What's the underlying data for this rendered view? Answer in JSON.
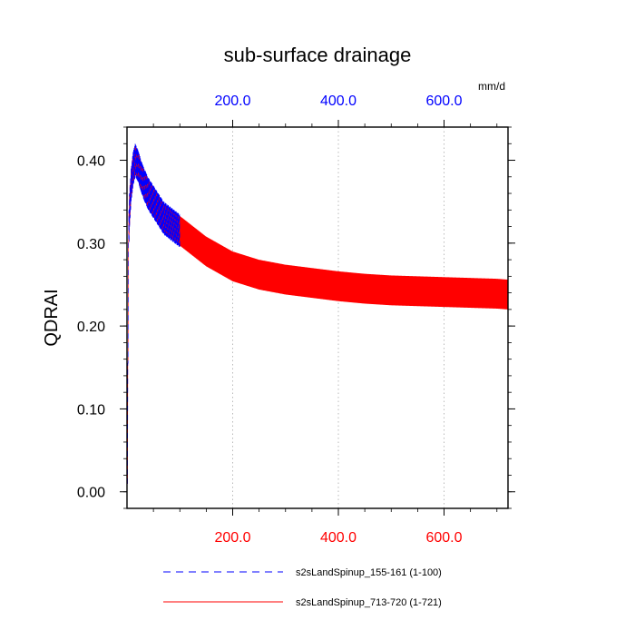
{
  "chart_data": {
    "type": "line",
    "title": "sub-surface drainage",
    "units": "mm/d",
    "ylabel": "QDRAI",
    "xlabel": "",
    "xlim": [
      0,
      721
    ],
    "ylim": [
      -0.02,
      0.44
    ],
    "grid": "vertical dotted at 200, 400, 600",
    "y_ticks": [
      {
        "value": 0.0,
        "label": "0.00"
      },
      {
        "value": 0.1,
        "label": "0.10"
      },
      {
        "value": 0.2,
        "label": "0.20"
      },
      {
        "value": 0.3,
        "label": "0.30"
      },
      {
        "value": 0.4,
        "label": "0.40"
      }
    ],
    "x_ticks_bottom": [
      {
        "value": 200,
        "label": "200.0"
      },
      {
        "value": 400,
        "label": "400.0"
      },
      {
        "value": 600,
        "label": "600.0"
      }
    ],
    "x_ticks_top": [
      {
        "value": 200,
        "label": "200.0"
      },
      {
        "value": 400,
        "label": "400.0"
      },
      {
        "value": 600,
        "label": "600.0"
      }
    ],
    "series": [
      {
        "name": "s2sLandSpinup_155-161 (1-100)",
        "color": "#0000ff",
        "dash": "dashed",
        "x": [
          1,
          3,
          5,
          8,
          12,
          16,
          20,
          25,
          30,
          40,
          50,
          60,
          70,
          80,
          90,
          100
        ],
        "y": [
          0.01,
          0.3,
          0.34,
          0.37,
          0.39,
          0.4,
          0.395,
          0.385,
          0.375,
          0.36,
          0.35,
          0.34,
          0.33,
          0.325,
          0.32,
          0.315
        ],
        "oscillation_amplitude": 0.02
      },
      {
        "name": "s2sLandSpinup_713-720 (1-721)",
        "color": "#ff0000",
        "dash": "solid",
        "x": [
          1,
          3,
          5,
          8,
          12,
          16,
          20,
          25,
          30,
          40,
          50,
          60,
          70,
          80,
          90,
          100,
          150,
          200,
          250,
          300,
          350,
          400,
          450,
          500,
          550,
          600,
          650,
          700,
          721
        ],
        "y": [
          0.01,
          0.3,
          0.34,
          0.37,
          0.39,
          0.4,
          0.395,
          0.385,
          0.375,
          0.36,
          0.35,
          0.34,
          0.33,
          0.325,
          0.32,
          0.315,
          0.29,
          0.272,
          0.262,
          0.256,
          0.252,
          0.248,
          0.245,
          0.243,
          0.242,
          0.241,
          0.24,
          0.239,
          0.238
        ],
        "oscillation_amplitude": 0.018
      }
    ],
    "legend": "bottom"
  },
  "colors": {
    "top_axis_labels": "#0000ff",
    "bottom_axis_labels": "#ff0000",
    "axis": "#000000",
    "grid": "#aaaaaa"
  }
}
